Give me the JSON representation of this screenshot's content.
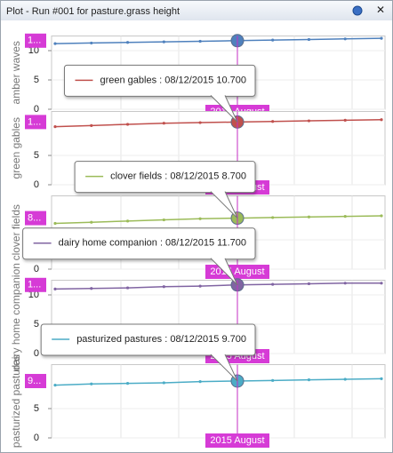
{
  "window": {
    "title": "Plot - Run #001 for pasture.grass height"
  },
  "chart_data": [
    {
      "type": "line",
      "y_label": "amber waves",
      "categories": [
        null,
        null,
        null,
        null,
        null,
        null,
        null,
        null,
        null,
        null
      ],
      "series": [
        {
          "name": "amber waves",
          "color": "#4f81bd",
          "values": [
            11.2,
            11.3,
            11.4,
            11.5,
            11.6,
            11.7,
            11.8,
            11.9,
            12.0,
            12.1
          ]
        }
      ],
      "ylim": [
        0,
        12.5
      ],
      "yticks": [
        0,
        5,
        10
      ],
      "grid": true,
      "crosshair_value_label": "1...",
      "crosshair_x_label": "2015 August"
    },
    {
      "type": "line",
      "y_label": "green gables",
      "categories": [
        null,
        null,
        null,
        null,
        null,
        null,
        null,
        null,
        null,
        null
      ],
      "series": [
        {
          "name": "green gables",
          "color": "#c0504d",
          "values": [
            9.9,
            10.1,
            10.3,
            10.5,
            10.6,
            10.7,
            10.8,
            10.9,
            11.0,
            11.1
          ]
        }
      ],
      "ylim": [
        0,
        12.5
      ],
      "yticks": [
        0,
        5
      ],
      "grid": true,
      "crosshair_value_label": "1...",
      "crosshair_x_label": "2015 August",
      "tooltip": "green gables : 08/12/2015 10.700"
    },
    {
      "type": "line",
      "y_label": "clover fields",
      "categories": [
        null,
        null,
        null,
        null,
        null,
        null,
        null,
        null,
        null,
        null
      ],
      "series": [
        {
          "name": "clover fields",
          "color": "#9bbb59",
          "values": [
            7.8,
            8.0,
            8.2,
            8.4,
            8.6,
            8.7,
            8.8,
            8.9,
            9.0,
            9.1
          ]
        }
      ],
      "ylim": [
        0,
        12.5
      ],
      "yticks": [
        0,
        5
      ],
      "grid": true,
      "crosshair_value_label": "8...",
      "crosshair_x_label": "2015 August",
      "tooltip": "clover fields : 08/12/2015 8.700"
    },
    {
      "type": "line",
      "y_label": "dairy home companion",
      "categories": [
        null,
        null,
        null,
        null,
        null,
        null,
        null,
        null,
        null,
        null
      ],
      "series": [
        {
          "name": "dairy home companion",
          "color": "#8064a2",
          "values": [
            11.0,
            11.1,
            11.2,
            11.4,
            11.5,
            11.7,
            11.8,
            11.9,
            12.0,
            12.0
          ]
        }
      ],
      "ylim": [
        0,
        12.5
      ],
      "yticks": [
        0,
        5,
        10
      ],
      "grid": true,
      "crosshair_value_label": "1...",
      "crosshair_x_label": "2015 August",
      "tooltip": "dairy home companion : 08/12/2015 11.700"
    },
    {
      "type": "line",
      "y_label": "pasturized pastures",
      "categories": [
        null,
        null,
        null,
        null,
        null,
        null,
        null,
        null,
        null,
        null
      ],
      "series": [
        {
          "name": "pasturized pastures",
          "color": "#4bacc6",
          "values": [
            9.0,
            9.2,
            9.3,
            9.4,
            9.6,
            9.7,
            9.8,
            9.9,
            10.0,
            10.1
          ]
        }
      ],
      "ylim": [
        0,
        12.5
      ],
      "yticks": [
        0,
        5
      ],
      "grid": true,
      "crosshair_value_label": "9...",
      "crosshair_x_label": "2015 August",
      "tooltip": "pasturized pastures : 08/12/2015 9.700"
    }
  ]
}
